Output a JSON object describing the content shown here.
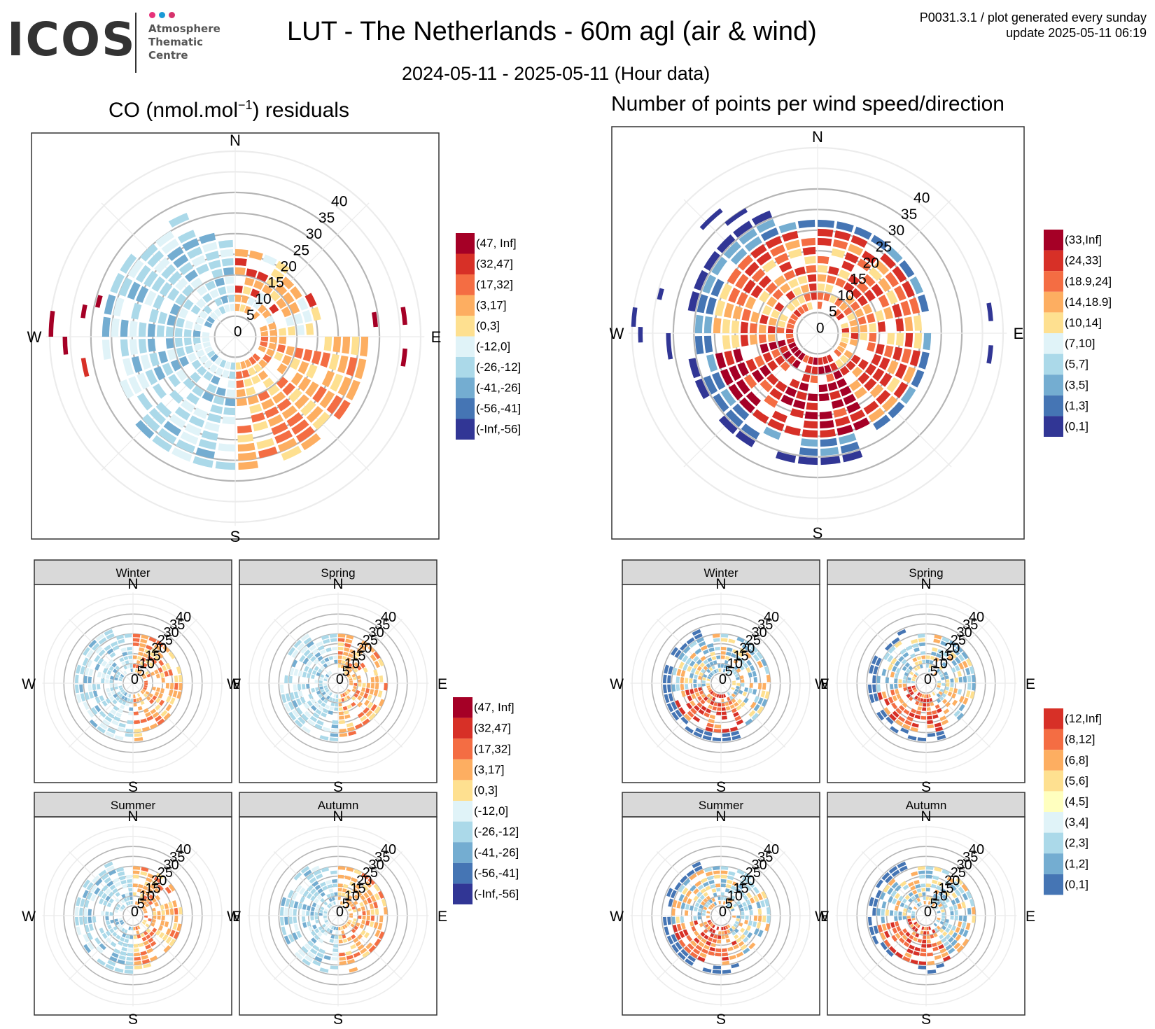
{
  "header": {
    "logo_text": "ICOS",
    "logo_sub": [
      "Atmosphere",
      "Thematic",
      "Centre"
    ],
    "title": "LUT - The Netherlands - 60m agl (air & wind)",
    "subtitle": "2024-05-11 - 2025-05-11 (Hour data)",
    "meta_line1": "P0031.3.1 / plot generated every sunday",
    "meta_line2": "update  2025-05-11 06:19"
  },
  "colors": {
    "rdylbu": [
      "#a50026",
      "#d73027",
      "#f46d43",
      "#fdae61",
      "#fee090",
      "#e0f3f8",
      "#abd9e9",
      "#74add1",
      "#4575b4",
      "#313695"
    ],
    "seasonal_count": [
      "#d73027",
      "#f46d43",
      "#fdae61",
      "#fee090",
      "#ffffbf",
      "#e0f3f8",
      "#abd9e9",
      "#74add1",
      "#4575b4"
    ]
  },
  "chart_data": [
    {
      "id": "co_residuals",
      "type": "heatmap",
      "subtype": "polar",
      "title": "CO (nmol.mol",
      "title_sup": "−1",
      "title_after": ") residuals",
      "directions": [
        "N",
        "E",
        "S",
        "W"
      ],
      "radial_ticks": [
        "0",
        "5",
        "10",
        "15",
        "20",
        "25",
        "30",
        "35",
        "40"
      ],
      "legend": [
        "(47, Inf]",
        "(32,47]",
        "(17,32]",
        "(3,17]",
        "(0,3]",
        "(-12,0]",
        "(-26,-12]",
        "(-41,-26]",
        "(-56,-41]",
        "(-Inf,-56]"
      ],
      "legend_colors": [
        "#a50026",
        "#d73027",
        "#f46d43",
        "#fdae61",
        "#fee090",
        "#e0f3f8",
        "#abd9e9",
        "#74add1",
        "#4575b4",
        "#313695"
      ]
    },
    {
      "id": "wind_counts",
      "type": "heatmap",
      "subtype": "polar",
      "title": "Number of points per wind speed/direction",
      "directions": [
        "N",
        "E",
        "S",
        "W"
      ],
      "radial_ticks": [
        "0",
        "5",
        "10",
        "15",
        "20",
        "25",
        "30",
        "35",
        "40"
      ],
      "legend": [
        "(33,Inf]",
        "(24,33]",
        "(18.9,24]",
        "(14,18.9]",
        "(10,14]",
        "(7,10]",
        "(5,7]",
        "(3,5]",
        "(1,3]",
        "(0,1]"
      ],
      "legend_colors": [
        "#a50026",
        "#d73027",
        "#f46d43",
        "#fdae61",
        "#fee090",
        "#e0f3f8",
        "#abd9e9",
        "#74add1",
        "#4575b4",
        "#313695"
      ]
    },
    {
      "id": "co_residuals_seasonal",
      "type": "heatmap",
      "subtype": "polar-facets",
      "facets": [
        "Winter",
        "Spring",
        "Summer",
        "Autumn"
      ],
      "directions": [
        "N",
        "E",
        "S",
        "W"
      ],
      "radial_ticks": [
        "0",
        "5",
        "10",
        "15",
        "20",
        "25",
        "30",
        "35",
        "40"
      ],
      "legend": [
        "(47, Inf]",
        "(32,47]",
        "(17,32]",
        "(3,17]",
        "(0,3]",
        "(-12,0]",
        "(-26,-12]",
        "(-41,-26]",
        "(-56,-41]",
        "(-Inf,-56]"
      ],
      "legend_colors": [
        "#a50026",
        "#d73027",
        "#f46d43",
        "#fdae61",
        "#fee090",
        "#e0f3f8",
        "#abd9e9",
        "#74add1",
        "#4575b4",
        "#313695"
      ]
    },
    {
      "id": "wind_counts_seasonal",
      "type": "heatmap",
      "subtype": "polar-facets",
      "facets": [
        "Winter",
        "Spring",
        "Summer",
        "Autumn"
      ],
      "directions": [
        "N",
        "E",
        "S",
        "W"
      ],
      "radial_ticks": [
        "0",
        "5",
        "10",
        "15",
        "20",
        "25",
        "30",
        "35",
        "40"
      ],
      "legend": [
        "(12,Inf]",
        "(8,12]",
        "(6,8]",
        "(5,6]",
        "(4,5]",
        "(3,4]",
        "(2,3]",
        "(1,2]",
        "(0,1]"
      ],
      "legend_colors": [
        "#d73027",
        "#f46d43",
        "#fdae61",
        "#fee090",
        "#ffffbf",
        "#e0f3f8",
        "#abd9e9",
        "#74add1",
        "#4575b4"
      ]
    }
  ]
}
